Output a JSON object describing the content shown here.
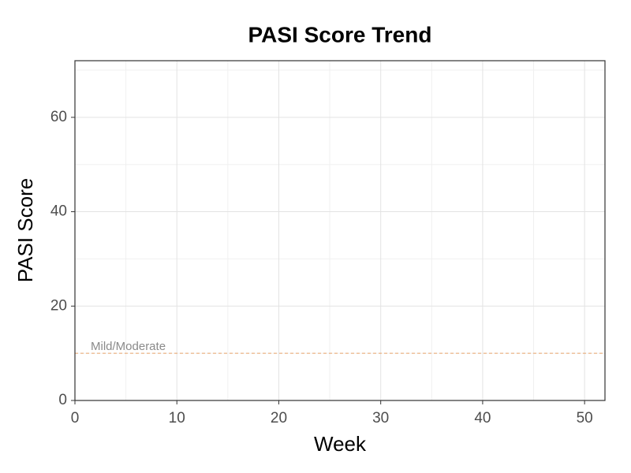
{
  "chart_data": {
    "type": "line",
    "title": "PASI Score Trend",
    "x_label": "Week",
    "y_label": "PASI Score",
    "series": [],
    "xlim": [
      0,
      52
    ],
    "xticks": [
      0,
      10,
      20,
      30,
      40,
      50
    ],
    "xticks_minor": [
      5,
      15,
      25,
      35,
      45
    ],
    "ylim": [
      0,
      72
    ],
    "yticks": [
      0,
      20,
      40,
      60
    ],
    "yticks_minor": [
      10,
      30,
      50,
      70
    ],
    "grid": true,
    "hline": {
      "value": 10,
      "label": "Mild/Moderate",
      "color": "#e8a26a"
    }
  }
}
